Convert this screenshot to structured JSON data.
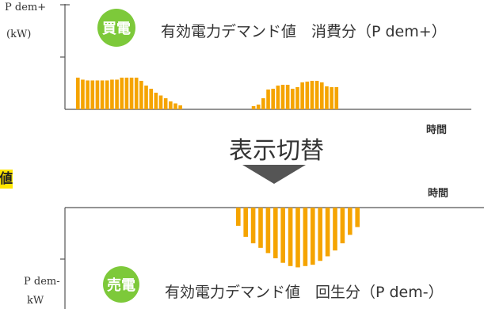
{
  "top_panel": {
    "y_label_line1": "P dem+",
    "y_label_line2": "(kW)",
    "badge": "買電",
    "series_label": "有効電力デマンド値　消費分（P dem+）",
    "time_label": "時間"
  },
  "switch": {
    "label": "表示切替"
  },
  "left_tag": {
    "text": "値"
  },
  "bottom_panel": {
    "time_label": "時間",
    "y_label_line1": "P dem-",
    "y_label_line2": "kW",
    "badge": "売電",
    "series_label": "有効電力デマンド値　回生分（P dem-）"
  },
  "colors": {
    "bar": "#f5a400",
    "badge": "#7dc93a",
    "arrow": "#555555",
    "axis": "#555555"
  },
  "chart_data": [
    {
      "type": "bar",
      "title": "有効電力デマンド値　消費分（P dem+）",
      "ylabel": "P dem+ (kW)",
      "xlabel": "時間",
      "ylim": [
        0,
        1
      ],
      "values": [
        0.8,
        0.75,
        0.73,
        0.73,
        0.73,
        0.73,
        0.73,
        0.75,
        0.75,
        0.8,
        0.8,
        0.8,
        0.8,
        0.72,
        0.6,
        0.52,
        0.42,
        0.35,
        0.28,
        0.2,
        0.15,
        0.1,
        0,
        0,
        0,
        0,
        0,
        0,
        0,
        0,
        0,
        0,
        0,
        0,
        0,
        0,
        0.08,
        0.12,
        0.28,
        0.5,
        0.52,
        0.6,
        0.62,
        0.62,
        0.52,
        0.56,
        0.68,
        0.7,
        0.72,
        0.72,
        0.68,
        0.58,
        0.56,
        0.56
      ]
    },
    {
      "type": "bar",
      "title": "有効電力デマンド値　回生分（P dem-）",
      "ylabel": "P dem- kW",
      "xlabel": "時間",
      "ylim": [
        -1,
        0
      ],
      "values": [
        -0.28,
        -0.45,
        -0.55,
        -0.62,
        -0.7,
        -0.78,
        -0.85,
        -0.9,
        -0.92,
        -0.9,
        -0.88,
        -0.82,
        -0.75,
        -0.66,
        -0.55,
        -0.42,
        -0.3
      ]
    }
  ]
}
